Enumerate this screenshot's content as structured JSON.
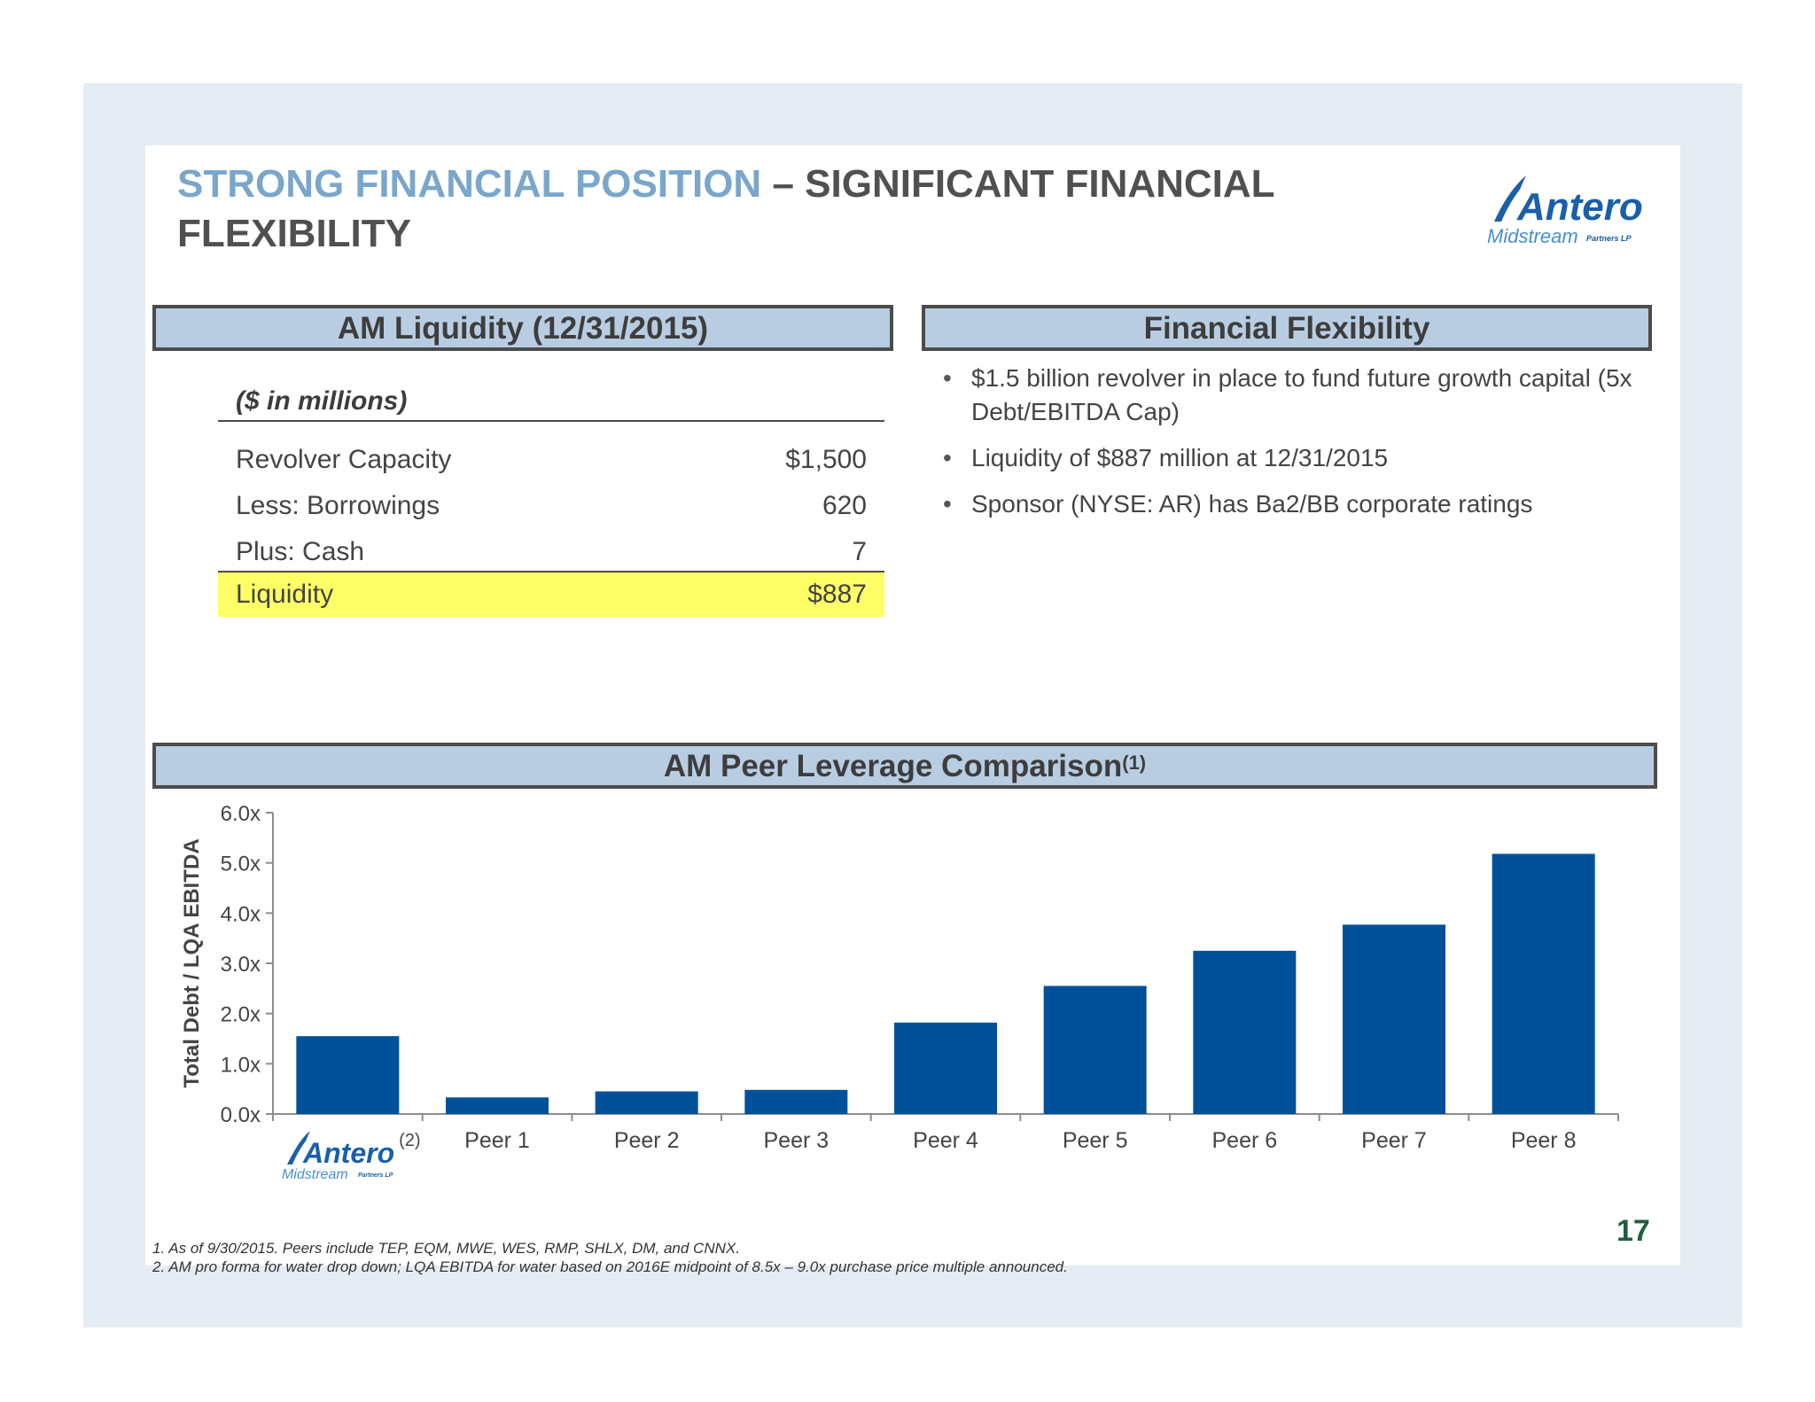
{
  "title": {
    "accent": "STRONG FINANCIAL POSITION",
    "rest": "– SIGNIFICANT FINANCIAL FLEXIBILITY"
  },
  "logo": {
    "brand": "Antero",
    "sub": "Midstream",
    "tag": "Partners LP"
  },
  "liquidity": {
    "header": "AM Liquidity (12/31/2015)",
    "unit": "($ in millions)",
    "rows": [
      {
        "label": "Revolver Capacity",
        "value": "$1,500"
      },
      {
        "label": "Less: Borrowings",
        "value": "620"
      },
      {
        "label": "Plus: Cash",
        "value": "7"
      }
    ],
    "total": {
      "label": "Liquidity",
      "value": "$887"
    }
  },
  "flexibility": {
    "header": "Financial Flexibility",
    "bullets": [
      "$1.5 billion revolver in place to fund future growth capital (5x Debt/EBITDA Cap)",
      "Liquidity of $887 million at 12/31/2015",
      "Sponsor (NYSE: AR) has Ba2/BB corporate ratings"
    ]
  },
  "comparison": {
    "header": "AM Peer Leverage Comparison",
    "header_sup": "(1)"
  },
  "chart_data": {
    "type": "bar",
    "categories": [
      "Antero",
      "Peer 1",
      "Peer 2",
      "Peer 3",
      "Peer 4",
      "Peer 5",
      "Peer 6",
      "Peer 7",
      "Peer 8"
    ],
    "values": [
      1.55,
      0.33,
      0.45,
      0.48,
      1.82,
      2.55,
      3.25,
      3.77,
      5.18
    ],
    "first_category_note": "(2)",
    "ylabel": "Total Debt / LQA EBITDA",
    "yticks": [
      "0.0x",
      "1.0x",
      "2.0x",
      "3.0x",
      "4.0x",
      "5.0x",
      "6.0x"
    ],
    "ylim": [
      0,
      6
    ],
    "bar_color": "#00519a",
    "grid": false
  },
  "footnotes": [
    "1. As of 9/30/2015. Peers include TEP, EQM, MWE, WES, RMP, SHLX, DM, and CNNX.",
    "2. AM pro forma for water drop down; LQA EBITDA for water based on 2016E midpoint of 8.5x – 9.0x purchase price multiple announced."
  ],
  "page_number": "17"
}
